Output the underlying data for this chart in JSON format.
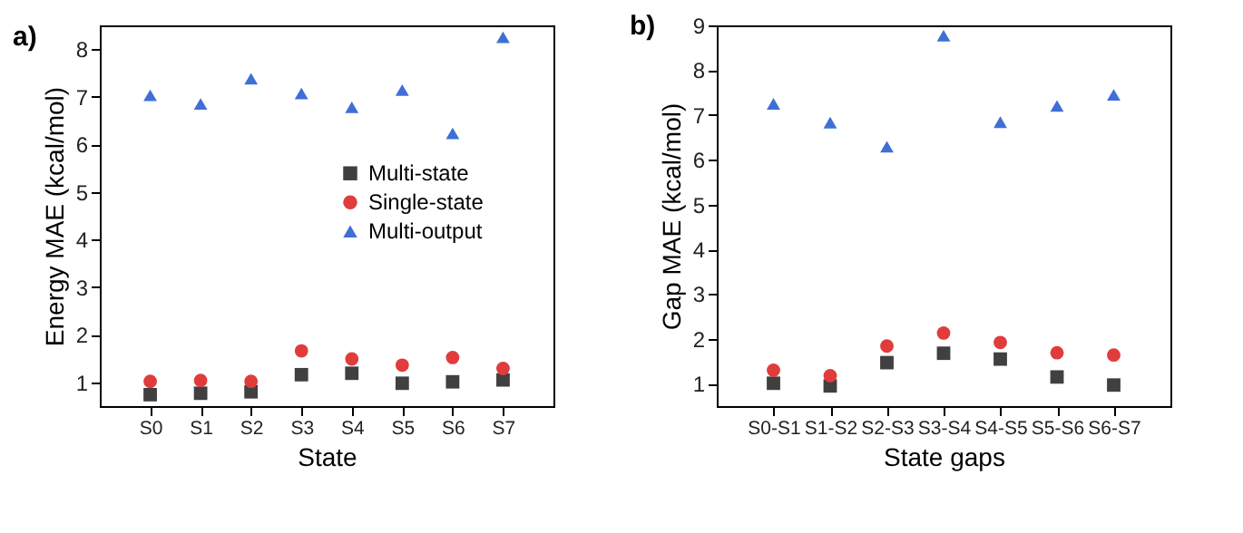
{
  "chart_data": [
    {
      "type": "scatter",
      "title": "a)",
      "xlabel": "State",
      "ylabel": "Energy MAE (kcal/mol)",
      "categories": [
        "S0",
        "S1",
        "S2",
        "S3",
        "S4",
        "S5",
        "S6",
        "S7"
      ],
      "ylim": [
        0.5,
        8.5
      ],
      "yticks": [
        1,
        2,
        3,
        4,
        5,
        6,
        7,
        8
      ],
      "grid": false,
      "legend": "right",
      "series": [
        {
          "name": "Multi-state",
          "color": "#404040",
          "marker": "square",
          "values": [
            0.74,
            0.77,
            0.8,
            1.16,
            1.19,
            0.98,
            1.01,
            1.05
          ]
        },
        {
          "name": "Single-state",
          "color": "#e03c3c",
          "marker": "circle",
          "values": [
            1.02,
            1.04,
            1.02,
            1.66,
            1.49,
            1.36,
            1.52,
            1.29
          ]
        },
        {
          "name": "Multi-output",
          "color": "#3f6fd6",
          "marker": "triangle",
          "values": [
            7.03,
            6.85,
            7.38,
            7.07,
            6.78,
            7.14,
            6.23,
            8.25
          ]
        }
      ]
    },
    {
      "type": "scatter",
      "title": "b)",
      "xlabel": "State gaps",
      "ylabel": "Gap MAE (kcal/mol)",
      "categories": [
        "S0-S1",
        "S1-S2",
        "S2-S3",
        "S3-S4",
        "S4-S5",
        "S5-S6",
        "S6-S7"
      ],
      "ylim": [
        0.5,
        9
      ],
      "yticks": [
        1,
        2,
        3,
        4,
        5,
        6,
        7,
        8,
        9
      ],
      "grid": false,
      "legend": "right",
      "series": [
        {
          "name": "Multi-state",
          "color": "#404040",
          "marker": "square",
          "values": [
            1.01,
            0.95,
            1.47,
            1.68,
            1.55,
            1.15,
            0.97
          ]
        },
        {
          "name": "Single-state",
          "color": "#e03c3c",
          "marker": "circle",
          "values": [
            1.3,
            1.18,
            1.84,
            2.13,
            1.92,
            1.69,
            1.64
          ]
        },
        {
          "name": "Multi-output",
          "color": "#3f6fd6",
          "marker": "triangle",
          "values": [
            7.25,
            6.83,
            6.29,
            8.77,
            6.84,
            7.2,
            7.45
          ]
        }
      ]
    }
  ]
}
